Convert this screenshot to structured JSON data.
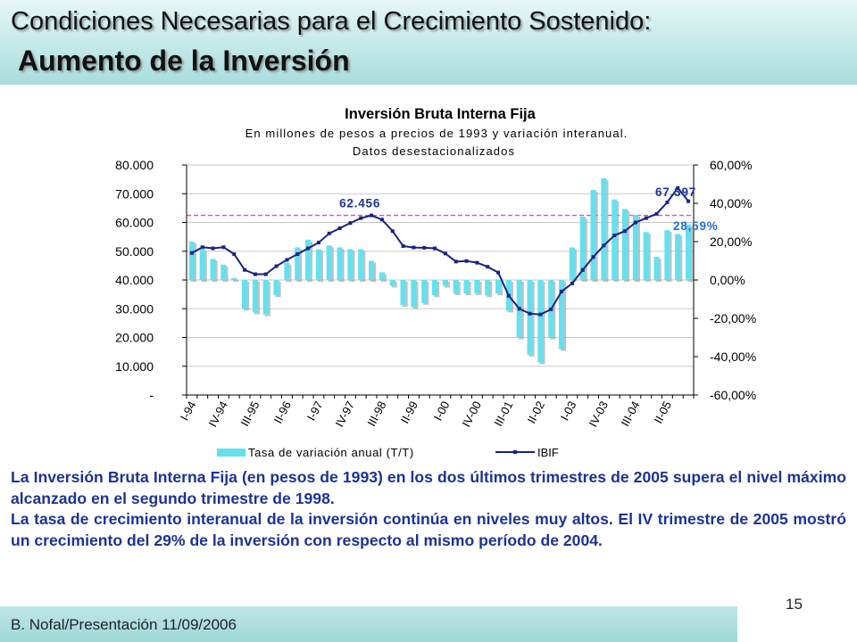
{
  "header": {
    "title_line1": "Condiciones Necesarias para el Crecimiento Sostenido:",
    "title_line2": "Aumento de la Inversión"
  },
  "chart_data": {
    "type": "bar",
    "title": "Inversión Bruta Interna Fija",
    "subtitle_1": "En millones de pesos a precios de 1993 y variación interanual.",
    "subtitle_2": "Datos desestacionalizados",
    "left_axis": {
      "ylim": [
        0,
        80000
      ],
      "ticks": [
        "80.000",
        "70.000",
        "60.000",
        "50.000",
        "40.000",
        "30.000",
        "20.000",
        "10.000",
        "-"
      ]
    },
    "right_axis": {
      "ylim": [
        -0.6,
        0.6
      ],
      "ticks": [
        "60,00%",
        "40,00%",
        "20,00%",
        "0,00%",
        "-20,00%",
        "-40,00%",
        "-60,00%"
      ]
    },
    "categories": [
      "I-94",
      "II-94",
      "III-94",
      "IV-94",
      "I-95",
      "II-95",
      "III-95",
      "IV-95",
      "I-96",
      "II-96",
      "III-96",
      "IV-96",
      "I-97",
      "II-97",
      "III-97",
      "IV-97",
      "I-98",
      "II-98",
      "III-98",
      "IV-98",
      "I-99",
      "II-99",
      "III-99",
      "IV-99",
      "I-00",
      "II-00",
      "III-00",
      "IV-00",
      "I-01",
      "II-01",
      "III-01",
      "IV-01",
      "I-02",
      "II-02",
      "III-02",
      "IV-02",
      "I-03",
      "II-03",
      "III-03",
      "IV-03",
      "I-04",
      "II-04",
      "III-04",
      "IV-04",
      "I-05",
      "II-05",
      "III-05",
      "IV-05"
    ],
    "tick_labels": [
      "I-94",
      "IV-94",
      "III-95",
      "II-96",
      "I-97",
      "IV-97",
      "III-98",
      "II-99",
      "I-00",
      "IV-00",
      "III-01",
      "II-02",
      "I-03",
      "IV-03",
      "III-04",
      "II-05"
    ],
    "series": [
      {
        "name": "Tasa de variación anual (T/T)",
        "axis": "right",
        "color": "#66e0ee",
        "values": [
          0.2,
          0.16,
          0.11,
          0.08,
          0.01,
          -0.15,
          -0.17,
          -0.18,
          -0.08,
          0.09,
          0.17,
          0.21,
          0.16,
          0.18,
          0.17,
          0.16,
          0.16,
          0.1,
          0.04,
          -0.03,
          -0.13,
          -0.14,
          -0.12,
          -0.08,
          -0.03,
          -0.07,
          -0.07,
          -0.07,
          -0.08,
          -0.07,
          -0.16,
          -0.3,
          -0.39,
          -0.43,
          -0.3,
          -0.36,
          0.17,
          0.33,
          0.47,
          0.53,
          0.42,
          0.37,
          0.34,
          0.25,
          0.12,
          0.26,
          0.24,
          0.29
        ]
      },
      {
        "name": "IBIF",
        "axis": "left",
        "color": "#1a237e",
        "values": [
          49400,
          51400,
          51000,
          51400,
          49000,
          43500,
          42000,
          42000,
          44800,
          47000,
          49000,
          51000,
          53000,
          56200,
          58000,
          59800,
          61500,
          62456,
          61000,
          57000,
          51800,
          51300,
          51200,
          51000,
          49200,
          46400,
          46600,
          46000,
          44600,
          42600,
          34500,
          30000,
          28300,
          28000,
          29800,
          36000,
          38800,
          43500,
          48000,
          52000,
          55500,
          57000,
          60000,
          61500,
          63000,
          67000,
          72000,
          67397
        ]
      }
    ],
    "annotations": {
      "peak_label": "62.456",
      "last_label": "67.397",
      "last_rate_label": "28,59%"
    },
    "legend_placement": "bottom",
    "reference_line": {
      "value": 62456,
      "color": "#ee44cc",
      "style": "dashed"
    }
  },
  "body": {
    "paragraph1": "La Inversión Bruta Interna Fija (en pesos de 1993) en los dos últimos trimestres de 2005 supera el nivel máximo alcanzado en el segundo trimestre de 1998.",
    "paragraph2": "La tasa de crecimiento interanual de la inversión continúa en niveles muy altos. El IV trimestre de 2005 mostró un crecimiento del 29% de la inversión con respecto al mismo período de 2004."
  },
  "page_number": "15",
  "footer": {
    "text": "B. Nofal/Presentación 11/09/2006"
  }
}
